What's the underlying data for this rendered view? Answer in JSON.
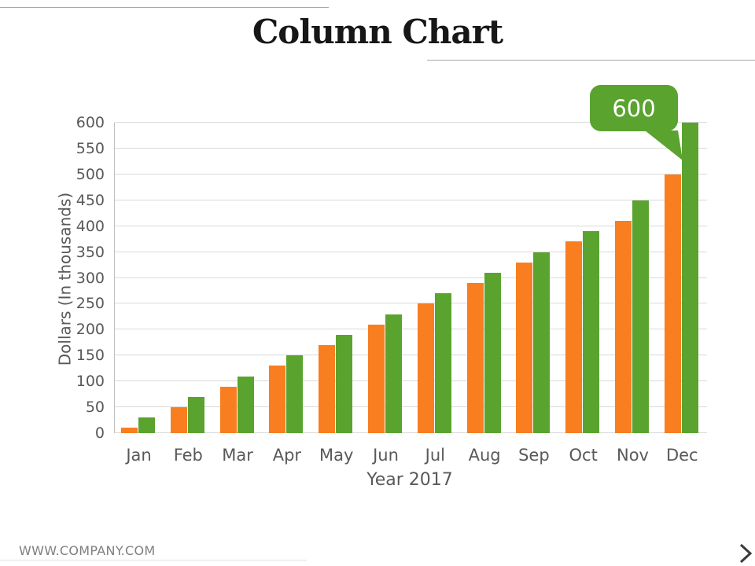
{
  "page": {
    "title": "Column Chart",
    "footer": {
      "website": "WWW.COMPANY.COM",
      "next_icon": "chevron-right"
    }
  },
  "chart_data": {
    "type": "bar",
    "title": "Column Chart",
    "categories": [
      "Jan",
      "Feb",
      "Mar",
      "Apr",
      "May",
      "Jun",
      "Jul",
      "Aug",
      "Sep",
      "Oct",
      "Nov",
      "Dec"
    ],
    "series": [
      {
        "name": "orange",
        "color": "#F87E20",
        "values": [
          10,
          50,
          90,
          130,
          170,
          210,
          250,
          290,
          330,
          370,
          410,
          500
        ]
      },
      {
        "name": "green",
        "color": "#5AA32F",
        "values": [
          30,
          70,
          110,
          150,
          190,
          230,
          270,
          310,
          350,
          390,
          450,
          600
        ]
      }
    ],
    "xlabel": "Year 2017",
    "ylabel": "Dollars (In thousands)",
    "ylim": [
      0,
      600
    ],
    "yticks": [
      0,
      50,
      100,
      150,
      200,
      250,
      300,
      350,
      400,
      450,
      500,
      550,
      600
    ],
    "grid": true,
    "legend": false,
    "callout": {
      "value": "600",
      "series": "green",
      "category": "Dec"
    }
  },
  "colors": {
    "grid": "#d9d9d9",
    "axis": "#bfbfbf",
    "tick_text": "#595959",
    "callout_bg": "#5AA32F",
    "callout_text": "#ffffff"
  }
}
